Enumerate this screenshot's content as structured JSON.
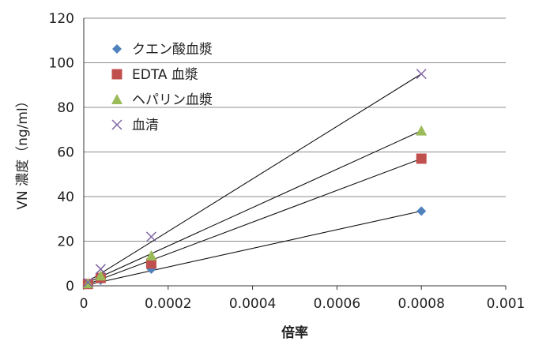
{
  "chart_data": {
    "type": "scatter",
    "title": "",
    "xlabel": "倍率",
    "ylabel": "VN 濃度（ng/ml）",
    "xlim": [
      0,
      0.001
    ],
    "ylim": [
      0,
      120
    ],
    "x_ticks": [
      "0",
      "0.0002",
      "0.0004",
      "0.0006",
      "0.0008",
      "0.001"
    ],
    "y_ticks": [
      "0",
      "20",
      "40",
      "60",
      "80",
      "100",
      "120"
    ],
    "grid": "horizontal",
    "legend_position": "top-left",
    "series": [
      {
        "name": "クエン酸血漿",
        "marker": "diamond",
        "color": "#4f81bd",
        "points": [
          [
            1e-05,
            0.5
          ],
          [
            4e-05,
            2.5
          ],
          [
            0.00016,
            7.5
          ],
          [
            0.0008,
            33.5
          ]
        ],
        "trendline": {
          "x0": 1e-05,
          "y0": 0.5,
          "x1": 0.0008,
          "y1": 33.5
        }
      },
      {
        "name": "EDTA 血漿",
        "marker": "square",
        "color": "#c0504d",
        "points": [
          [
            1e-05,
            0.8
          ],
          [
            4e-05,
            3.5
          ],
          [
            0.00016,
            10
          ],
          [
            0.0008,
            57
          ]
        ],
        "trendline": {
          "x0": 1e-05,
          "y0": 0.8,
          "x1": 0.0008,
          "y1": 57
        }
      },
      {
        "name": "ヘパリン血漿",
        "marker": "triangle",
        "color": "#9bbb59",
        "points": [
          [
            1e-05,
            1
          ],
          [
            4e-05,
            4.5
          ],
          [
            0.00016,
            13.5
          ],
          [
            0.0008,
            69.5
          ]
        ],
        "trendline": {
          "x0": 1e-05,
          "y0": 1.5,
          "x1": 0.0008,
          "y1": 69.5
        }
      },
      {
        "name": "血清",
        "marker": "x",
        "color": "#8064a2",
        "points": [
          [
            1e-05,
            1.5
          ],
          [
            4e-05,
            7.5
          ],
          [
            0.00016,
            22
          ],
          [
            0.0008,
            95
          ]
        ],
        "trendline": {
          "x0": 1e-05,
          "y0": 2,
          "x1": 0.0008,
          "y1": 95
        }
      }
    ]
  }
}
